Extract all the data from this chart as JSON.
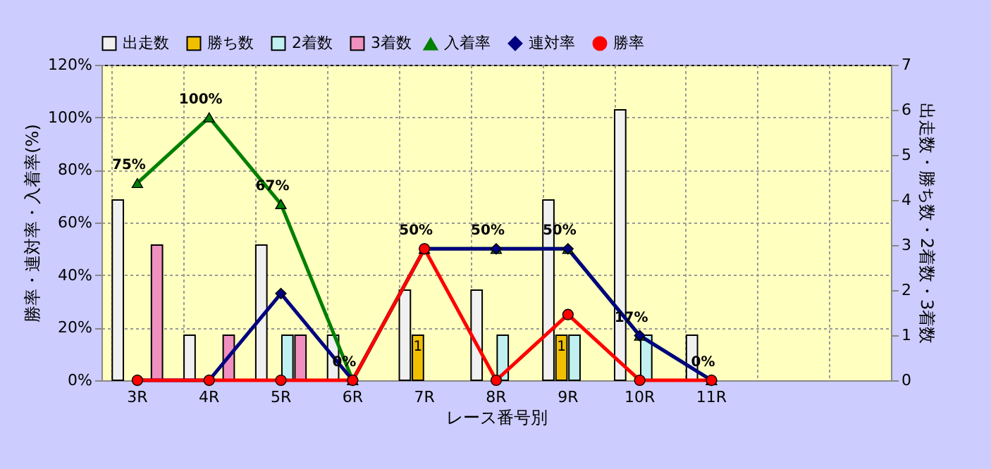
{
  "chart_data": {
    "type": "bar",
    "xlabel": "レース番号別",
    "ylabel": "勝率・連対率・入着率(%)",
    "y2label": "出走数・勝ち数・2着数・3着数",
    "categories": [
      "3R",
      "4R",
      "5R",
      "6R",
      "7R",
      "8R",
      "9R",
      "10R",
      "11R",
      null,
      null
    ],
    "series": [
      {
        "name": "出走数",
        "axis": "y2",
        "color": "#f0f0f0",
        "values": [
          4,
          1,
          3,
          1,
          2,
          2,
          4,
          6,
          1,
          null,
          null
        ]
      },
      {
        "name": "勝ち数",
        "axis": "y2",
        "color": "#f0c000",
        "values": [
          null,
          null,
          null,
          null,
          1,
          null,
          1,
          null,
          null,
          null,
          null
        ],
        "value_labels": [
          null,
          null,
          null,
          null,
          "1",
          null,
          "1",
          null,
          null,
          null,
          null
        ]
      },
      {
        "name": "2着数",
        "axis": "y2",
        "color": "#c0f0f0",
        "values": [
          null,
          null,
          1,
          null,
          null,
          1,
          1,
          1,
          null,
          null,
          null
        ]
      },
      {
        "name": "3着数",
        "axis": "y2",
        "color": "#f090c0",
        "values": [
          3,
          1,
          1,
          null,
          null,
          null,
          null,
          null,
          null,
          null,
          null
        ]
      },
      {
        "name": "入着率",
        "type": "line",
        "marker": "triangle",
        "color": "#008000",
        "values": [
          75,
          100,
          67,
          0,
          50,
          50,
          50,
          17,
          0,
          null,
          null
        ],
        "value_labels": [
          "75%",
          "100%",
          "67%",
          "0%",
          "50%",
          "50%",
          "50%",
          "17%",
          "0%",
          null,
          null
        ]
      },
      {
        "name": "連対率",
        "type": "line",
        "marker": "diamond",
        "color": "#000080",
        "values": [
          0,
          0,
          33,
          0,
          50,
          50,
          50,
          17,
          0,
          null,
          null
        ]
      },
      {
        "name": "勝率",
        "type": "line",
        "marker": "circle",
        "color": "#ff0000",
        "values": [
          0,
          0,
          0,
          0,
          50,
          0,
          25,
          0,
          0,
          null,
          null
        ]
      }
    ],
    "ylim": [
      0,
      120
    ],
    "yticks": [
      {
        "value": 0,
        "label": "0%"
      },
      {
        "value": 20,
        "label": "20%"
      },
      {
        "value": 40,
        "label": "40%"
      },
      {
        "value": 60,
        "label": "60%"
      },
      {
        "value": 80,
        "label": "80%"
      },
      {
        "value": 100,
        "label": "100%"
      },
      {
        "value": 120,
        "label": "120%"
      }
    ],
    "y2lim": [
      0,
      7
    ],
    "y2ticks": [
      0,
      1,
      2,
      3,
      4,
      5,
      6,
      7
    ],
    "grid": true,
    "legend": "top"
  }
}
